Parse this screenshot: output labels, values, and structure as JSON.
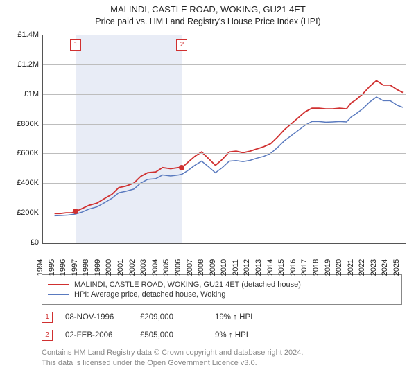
{
  "title": "MALINDI, CASTLE ROAD, WOKING, GU21 4ET",
  "subtitle": "Price paid vs. HM Land Registry's House Price Index (HPI)",
  "chart": {
    "type": "line",
    "ylim": [
      0,
      1400000
    ],
    "ytick_step": 200000,
    "ytick_labels": [
      "£0",
      "£200K",
      "£400K",
      "£600K",
      "£800K",
      "£1M",
      "£1.2M",
      "£1.4M"
    ],
    "xlim": [
      1994,
      2025.6
    ],
    "xtick_years": [
      1994,
      1995,
      1996,
      1997,
      1998,
      1999,
      2000,
      2001,
      2002,
      2003,
      2004,
      2005,
      2006,
      2007,
      2008,
      2009,
      2010,
      2011,
      2012,
      2013,
      2014,
      2015,
      2016,
      2017,
      2018,
      2019,
      2020,
      2021,
      2022,
      2023,
      2024,
      2025
    ],
    "band": {
      "start": 1996.86,
      "end": 2006.09,
      "fill": "#e8ecf6"
    },
    "markers": [
      {
        "label": "1",
        "x": 1996.86,
        "price": 209000,
        "label_y": 1330000
      },
      {
        "label": "2",
        "x": 2006.09,
        "price": 505000,
        "label_y": 1330000
      }
    ],
    "series": [
      {
        "name": "price_paid",
        "color": "#d03030",
        "width": 1.8,
        "legend": "MALINDI, CASTLE ROAD, WOKING, GU21 4ET (detached house)",
        "points": [
          [
            1995.0,
            195000
          ],
          [
            1995.5,
            195000
          ],
          [
            1996.0,
            200000
          ],
          [
            1996.5,
            200000
          ],
          [
            1996.85,
            209000
          ],
          [
            1997.3,
            225000
          ],
          [
            1998.0,
            250000
          ],
          [
            1998.7,
            265000
          ],
          [
            1999.4,
            298000
          ],
          [
            2000.0,
            325000
          ],
          [
            2000.6,
            370000
          ],
          [
            2001.2,
            380000
          ],
          [
            2001.9,
            400000
          ],
          [
            2002.5,
            445000
          ],
          [
            2003.1,
            470000
          ],
          [
            2003.8,
            475000
          ],
          [
            2004.4,
            505000
          ],
          [
            2005.1,
            497000
          ],
          [
            2005.8,
            505000
          ],
          [
            2006.09,
            505000
          ],
          [
            2006.6,
            540000
          ],
          [
            2007.2,
            580000
          ],
          [
            2007.8,
            610000
          ],
          [
            2008.4,
            565000
          ],
          [
            2009.0,
            520000
          ],
          [
            2009.6,
            560000
          ],
          [
            2010.2,
            610000
          ],
          [
            2010.8,
            615000
          ],
          [
            2011.4,
            605000
          ],
          [
            2012.0,
            615000
          ],
          [
            2012.6,
            630000
          ],
          [
            2013.2,
            645000
          ],
          [
            2013.8,
            665000
          ],
          [
            2014.4,
            710000
          ],
          [
            2015.0,
            760000
          ],
          [
            2015.6,
            800000
          ],
          [
            2016.2,
            840000
          ],
          [
            2016.8,
            880000
          ],
          [
            2017.4,
            905000
          ],
          [
            2018.0,
            905000
          ],
          [
            2018.6,
            900000
          ],
          [
            2019.2,
            900000
          ],
          [
            2019.8,
            905000
          ],
          [
            2020.4,
            900000
          ],
          [
            2020.8,
            940000
          ],
          [
            2021.2,
            960000
          ],
          [
            2021.8,
            1000000
          ],
          [
            2022.4,
            1050000
          ],
          [
            2023.0,
            1090000
          ],
          [
            2023.6,
            1060000
          ],
          [
            2024.2,
            1060000
          ],
          [
            2024.8,
            1030000
          ],
          [
            2025.3,
            1010000
          ]
        ]
      },
      {
        "name": "hpi",
        "color": "#5a7abf",
        "width": 1.5,
        "legend": "HPI: Average price, detached house, Woking",
        "points": [
          [
            1995.0,
            180000
          ],
          [
            1995.6,
            182000
          ],
          [
            1996.2,
            185000
          ],
          [
            1996.85,
            192000
          ],
          [
            1997.4,
            205000
          ],
          [
            1998.0,
            225000
          ],
          [
            1998.7,
            240000
          ],
          [
            1999.4,
            270000
          ],
          [
            2000.0,
            298000
          ],
          [
            2000.6,
            335000
          ],
          [
            2001.2,
            345000
          ],
          [
            2001.9,
            360000
          ],
          [
            2002.5,
            400000
          ],
          [
            2003.1,
            425000
          ],
          [
            2003.8,
            430000
          ],
          [
            2004.4,
            455000
          ],
          [
            2005.1,
            448000
          ],
          [
            2005.8,
            455000
          ],
          [
            2006.09,
            460000
          ],
          [
            2006.6,
            485000
          ],
          [
            2007.2,
            520000
          ],
          [
            2007.8,
            548000
          ],
          [
            2008.4,
            510000
          ],
          [
            2009.0,
            470000
          ],
          [
            2009.6,
            505000
          ],
          [
            2010.2,
            548000
          ],
          [
            2010.8,
            552000
          ],
          [
            2011.4,
            545000
          ],
          [
            2012.0,
            553000
          ],
          [
            2012.6,
            568000
          ],
          [
            2013.2,
            580000
          ],
          [
            2013.8,
            600000
          ],
          [
            2014.4,
            640000
          ],
          [
            2015.0,
            685000
          ],
          [
            2015.6,
            720000
          ],
          [
            2016.2,
            755000
          ],
          [
            2016.8,
            790000
          ],
          [
            2017.4,
            815000
          ],
          [
            2018.0,
            815000
          ],
          [
            2018.6,
            810000
          ],
          [
            2019.2,
            812000
          ],
          [
            2019.8,
            815000
          ],
          [
            2020.4,
            812000
          ],
          [
            2020.8,
            845000
          ],
          [
            2021.2,
            865000
          ],
          [
            2021.8,
            900000
          ],
          [
            2022.4,
            945000
          ],
          [
            2023.0,
            980000
          ],
          [
            2023.6,
            955000
          ],
          [
            2024.2,
            955000
          ],
          [
            2024.8,
            925000
          ],
          [
            2025.3,
            910000
          ]
        ]
      }
    ],
    "grid_color": "#bdbdbd",
    "axis_color": "#555555",
    "background_color": "#ffffff",
    "tick_fontsize": 11
  },
  "sales_table": {
    "rows": [
      {
        "n": "1",
        "date": "08-NOV-1996",
        "price": "£209,000",
        "delta": "19% ↑ HPI"
      },
      {
        "n": "2",
        "date": "02-FEB-2006",
        "price": "£505,000",
        "delta": "9% ↑ HPI"
      }
    ]
  },
  "footer": {
    "line1": "Contains HM Land Registry data © Crown copyright and database right 2024.",
    "line2": "This data is licensed under the Open Government Licence v3.0."
  }
}
